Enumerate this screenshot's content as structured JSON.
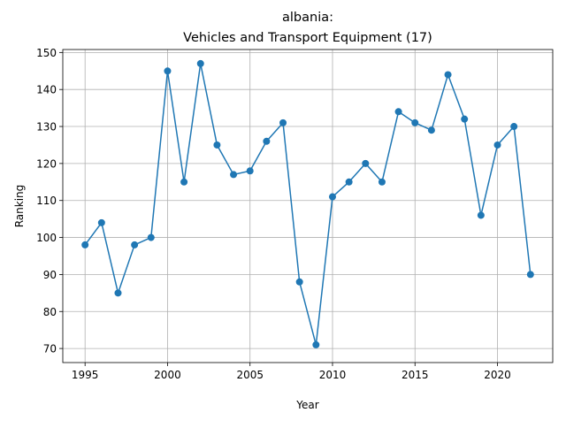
{
  "chart_data": {
    "type": "line",
    "title_line1": "albania:",
    "title_line2": "Vehicles and Transport Equipment (17)",
    "xlabel": "Year",
    "ylabel": "Ranking",
    "xlim": [
      1993.65,
      2023.35
    ],
    "ylim": [
      66.2,
      150.8
    ],
    "xticks": [
      1995,
      2000,
      2005,
      2010,
      2015,
      2020
    ],
    "yticks": [
      70,
      80,
      90,
      100,
      110,
      120,
      130,
      140,
      150
    ],
    "grid": true,
    "color": "#1f77b4",
    "marker": "circle",
    "x": [
      1995,
      1996,
      1997,
      1998,
      1999,
      2000,
      2001,
      2002,
      2003,
      2004,
      2005,
      2006,
      2007,
      2008,
      2009,
      2010,
      2011,
      2012,
      2013,
      2014,
      2015,
      2016,
      2017,
      2018,
      2019,
      2020,
      2021,
      2022
    ],
    "y": [
      98,
      104,
      85,
      98,
      100,
      145,
      115,
      147,
      125,
      117,
      118,
      126,
      131,
      88,
      71,
      111,
      115,
      120,
      115,
      134,
      131,
      129,
      144,
      132,
      106,
      125,
      130,
      90
    ]
  }
}
